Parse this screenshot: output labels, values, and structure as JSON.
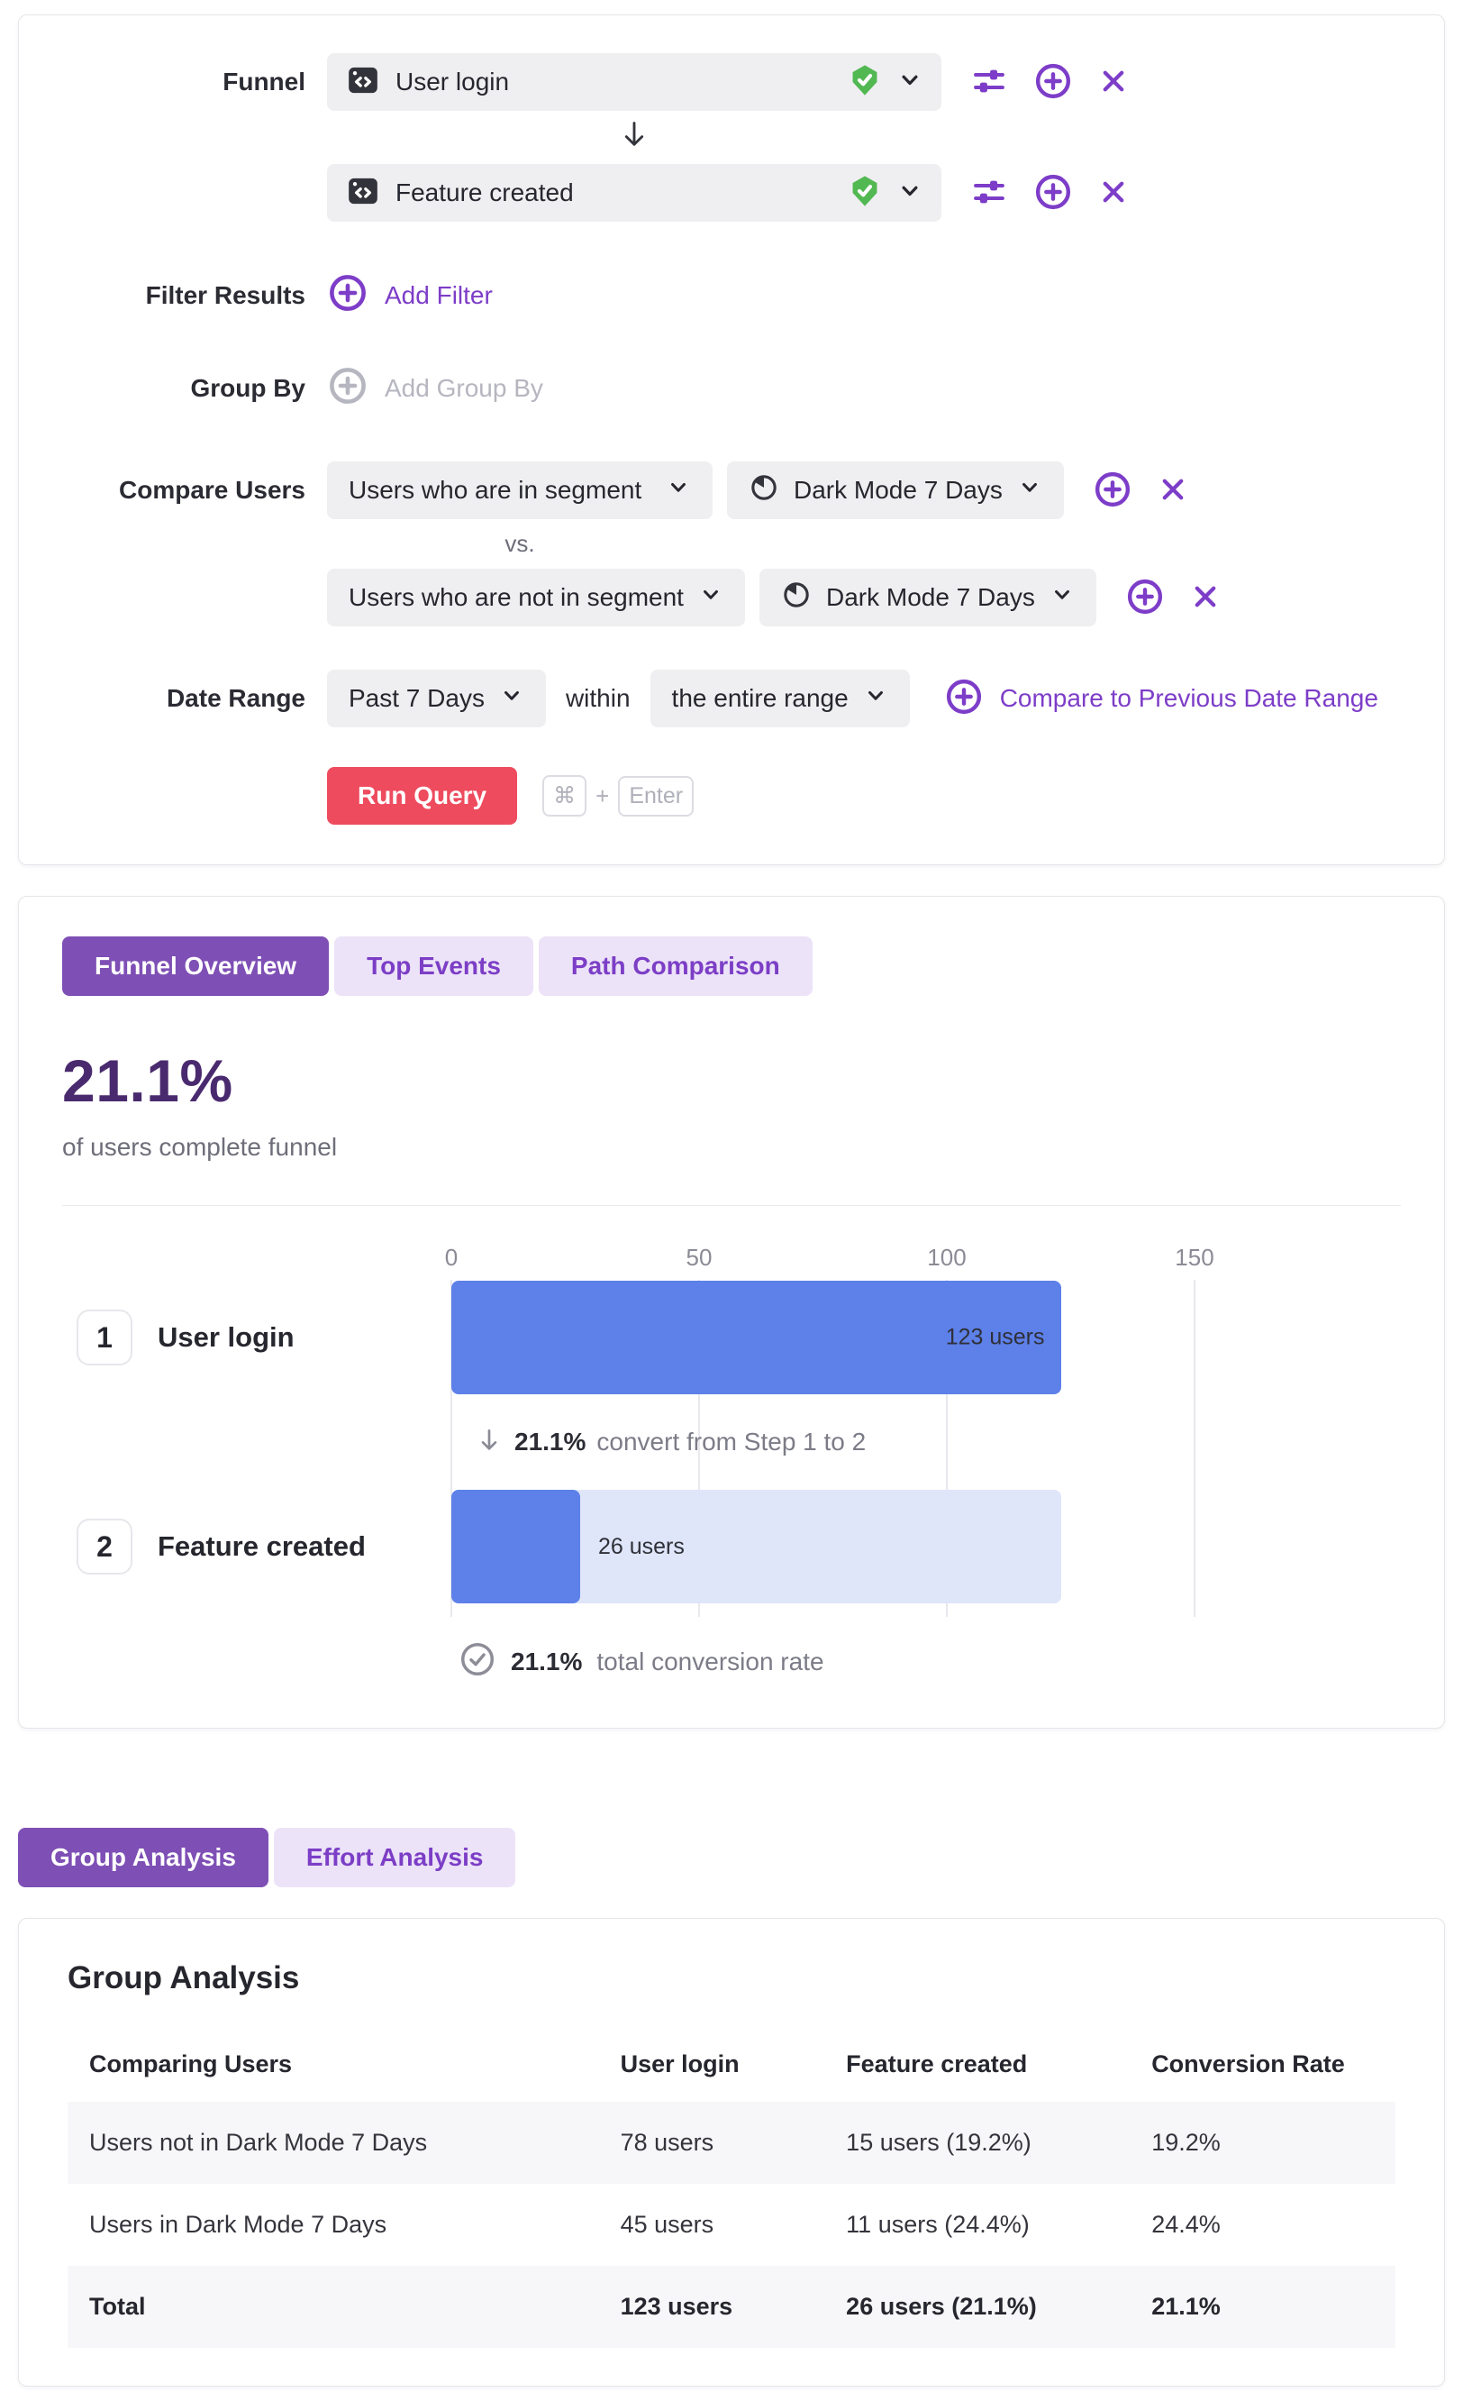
{
  "query_builder": {
    "funnel_label": "Funnel",
    "steps": [
      {
        "name": "User login"
      },
      {
        "name": "Feature created"
      }
    ],
    "filter_results": {
      "label": "Filter Results",
      "action": "Add Filter"
    },
    "group_by": {
      "label": "Group By",
      "action": "Add Group By"
    },
    "compare_users": {
      "label": "Compare Users",
      "vs_label": "vs.",
      "rows": [
        {
          "segment_type": "Users who are in segment",
          "segment": "Dark Mode 7 Days"
        },
        {
          "segment_type": "Users who are not in segment",
          "segment": "Dark Mode 7 Days"
        }
      ]
    },
    "date_range": {
      "label": "Date Range",
      "range": "Past 7 Days",
      "within_label": "within",
      "scope": "the entire range",
      "compare_action": "Compare to Previous Date Range"
    },
    "run_query": {
      "label": "Run Query",
      "kbd": [
        "⌘",
        "+",
        "Enter"
      ]
    }
  },
  "overview": {
    "tabs": [
      {
        "label": "Funnel Overview",
        "active": true
      },
      {
        "label": "Top Events",
        "active": false
      },
      {
        "label": "Path Comparison",
        "active": false
      }
    ],
    "headline": "21.1%",
    "subtitle": "of users complete funnel",
    "conversion_annotation": {
      "pct": "21.1%",
      "text": "convert from Step 1 to 2"
    },
    "total_conversion": {
      "pct": "21.1%",
      "text": "total conversion rate"
    }
  },
  "chart_data": {
    "type": "bar",
    "orientation": "horizontal",
    "categories": [
      "User login",
      "Feature created"
    ],
    "step_numbers": [
      "1",
      "2"
    ],
    "values": [
      123,
      26
    ],
    "value_labels": [
      "123 users",
      "26 users"
    ],
    "xlim": [
      0,
      150
    ],
    "ticks": [
      0,
      50,
      100,
      150
    ],
    "grid": true,
    "conversion_step1_to_2_pct": 21.1,
    "total_conversion_pct": 21.1
  },
  "analysis_tabs": [
    {
      "label": "Group Analysis",
      "active": true
    },
    {
      "label": "Effort Analysis",
      "active": false
    }
  ],
  "group_analysis": {
    "title": "Group Analysis",
    "columns": [
      "Comparing Users",
      "User login",
      "Feature created",
      "Conversion Rate"
    ],
    "rows": [
      [
        "Users not in Dark Mode 7 Days",
        "78 users",
        "15 users (19.2%)",
        "19.2%"
      ],
      [
        "Users in Dark Mode 7 Days",
        "45 users",
        "11 users (24.4%)",
        "24.4%"
      ],
      [
        "Total",
        "123 users",
        "26 users (21.1%)",
        "21.1%"
      ]
    ]
  },
  "icons": {
    "event": "code-window-icon",
    "verified": "shield-check-icon",
    "expand": "chevron-down-icon",
    "configure": "sliders-icon",
    "add": "plus-circle-icon",
    "remove": "x-icon",
    "segment": "pie-chart-icon",
    "step_arrow": "arrow-down-icon",
    "total_check": "check-circle-icon"
  },
  "colors": {
    "accent_purple": "#7d3dc8",
    "tab_active_bg": "#7e4fb5",
    "tab_inactive_bg": "#ece3f8",
    "headline_purple": "#4a2a6e",
    "run_button_red": "#ee4b5e",
    "bar_blue": "#5d80e9",
    "bar_track_blue": "#dfe6fa",
    "verified_green": "#52b852",
    "input_gray": "#efeff1"
  }
}
